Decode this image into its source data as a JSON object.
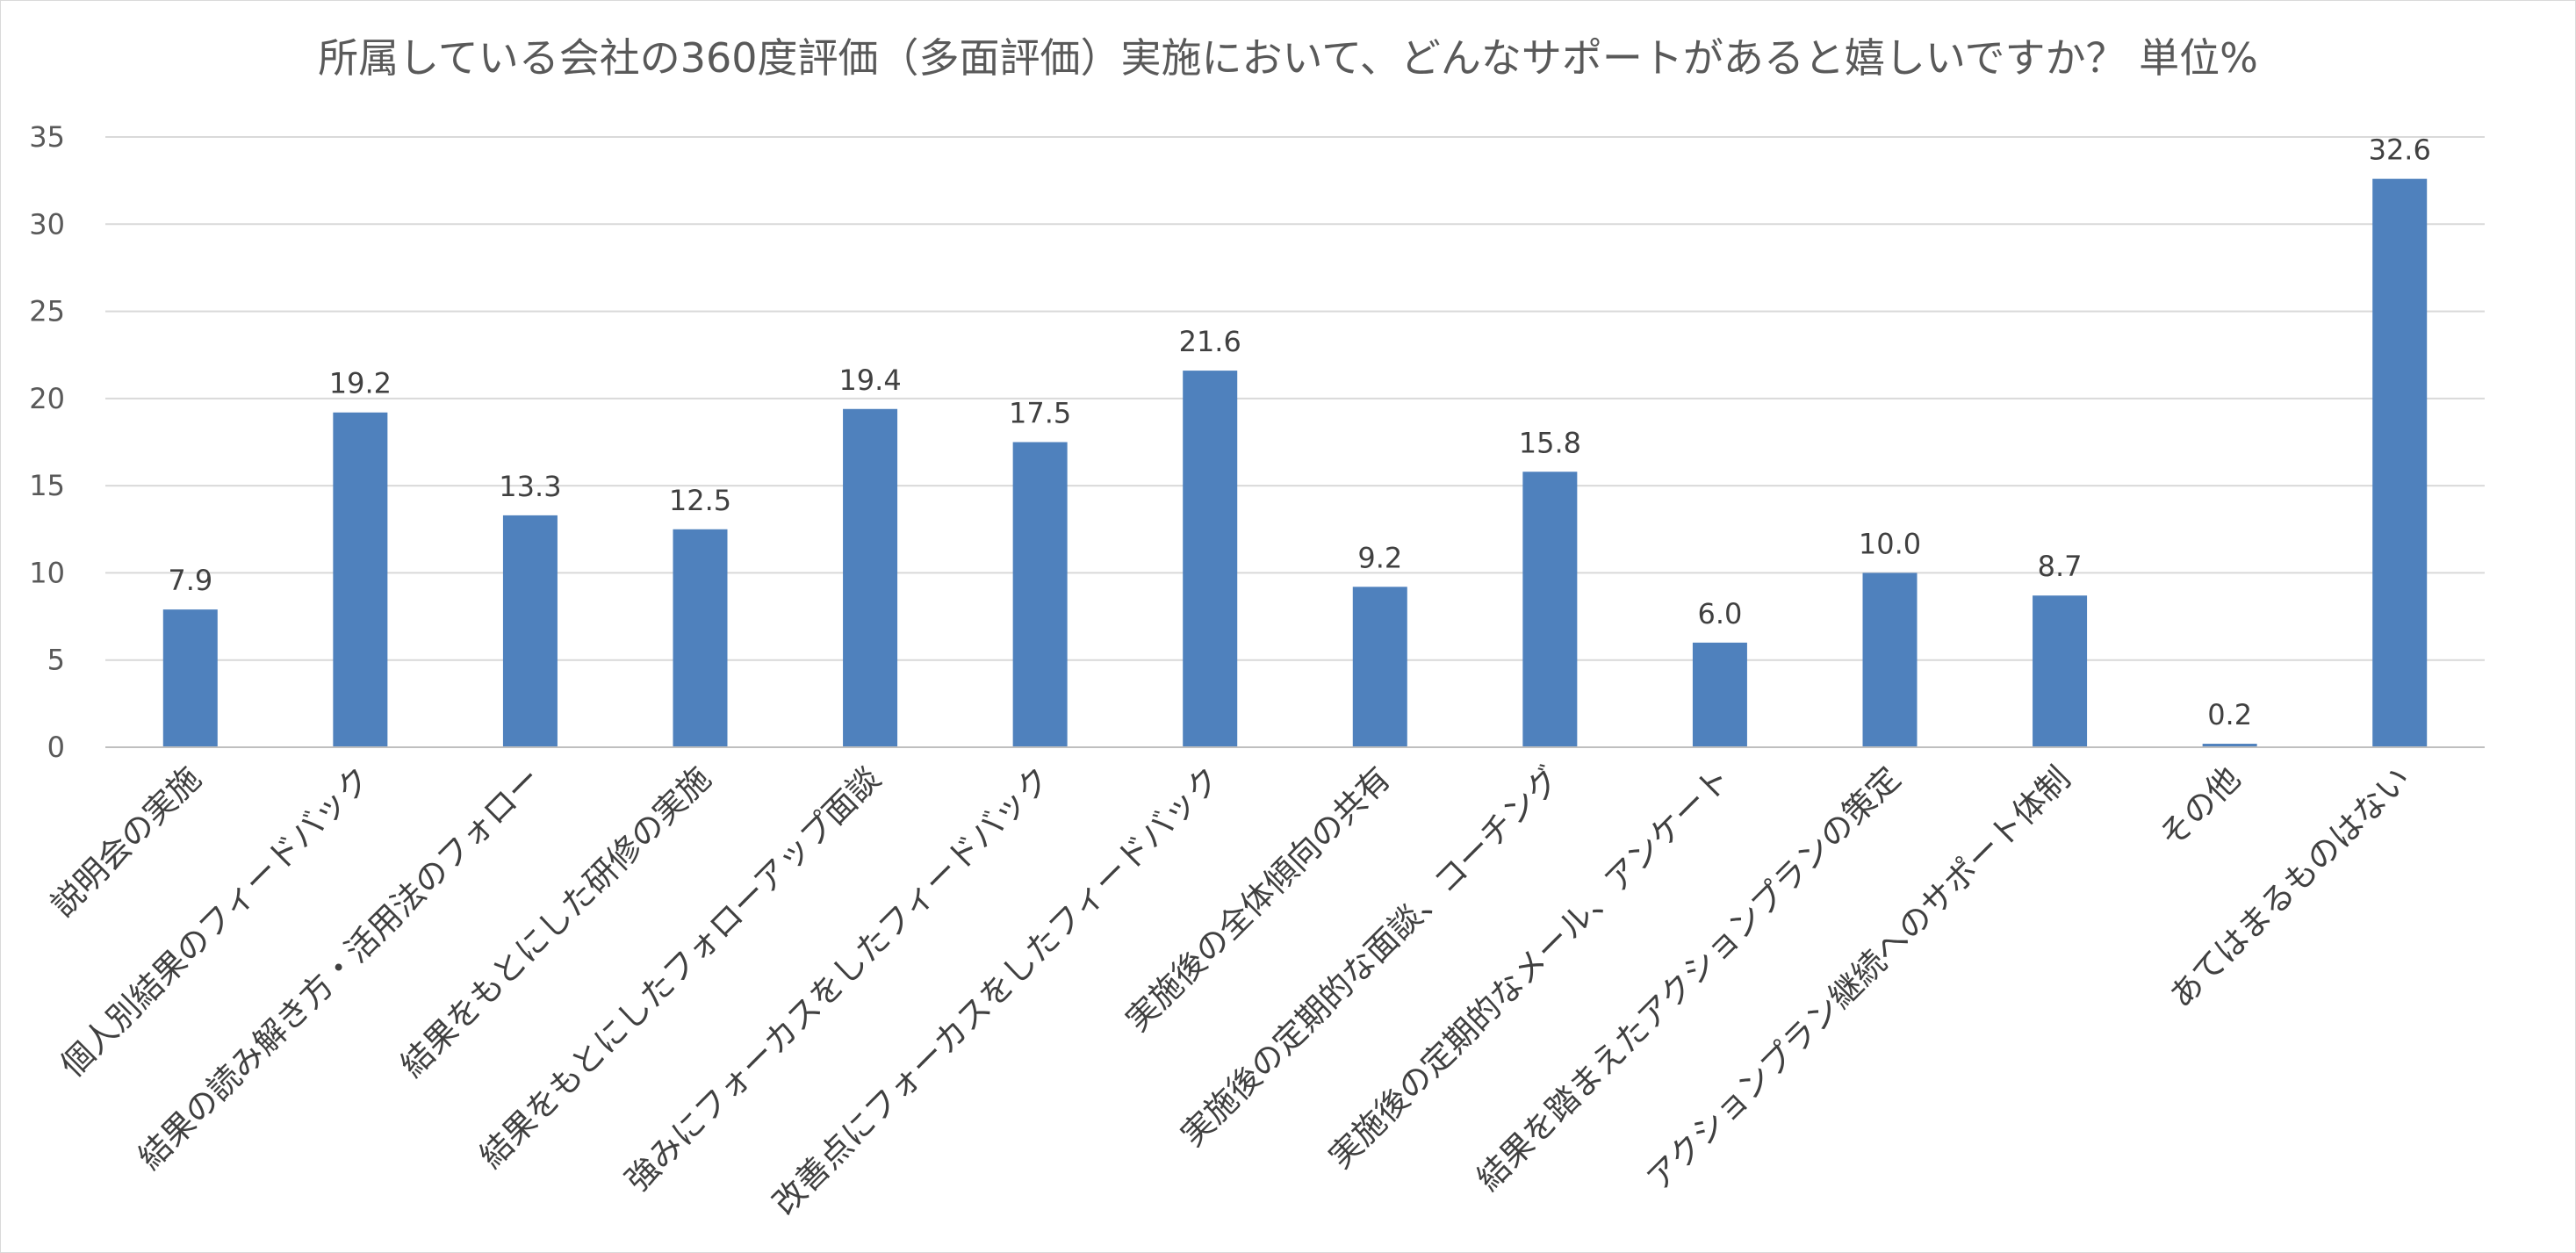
{
  "chart_data": {
    "type": "bar",
    "title": "所属している会社の360度評価（多面評価）実施において、どんなサポートがあると嬉しいですか？ 単位%",
    "xlabel": "",
    "ylabel": "",
    "ylim": [
      0,
      35
    ],
    "yticks": [
      "0",
      "5",
      "10",
      "15",
      "20",
      "25",
      "30",
      "35"
    ],
    "grid": true,
    "bar_color": "#4f81bd",
    "categories": [
      "説明会の実施",
      "個人別結果のフィードバック",
      "結果の読み解き方・活用法のフォロー",
      "結果をもとにした研修の実施",
      "結果をもとにしたフォローアップ面談",
      "強みにフォーカスをしたフィードバック",
      "改善点にフォーカスをしたフィードバック",
      "実施後の全体傾向の共有",
      "実施後の定期的な面談、コーチング",
      "実施後の定期的なメール、アンケート",
      "結果を踏まえたアクションプランの策定",
      "アクションプラン継続へのサポート体制",
      "その他",
      "あてはまるものはない"
    ],
    "values": [
      7.9,
      19.2,
      13.3,
      12.5,
      19.4,
      17.5,
      21.6,
      9.2,
      15.8,
      6.0,
      10.0,
      8.7,
      0.2,
      32.6
    ],
    "value_labels": [
      "7.9",
      "19.2",
      "13.3",
      "12.5",
      "19.4",
      "17.5",
      "21.6",
      "9.2",
      "15.8",
      "6.0",
      "10.0",
      "8.7",
      "0.2",
      "32.6"
    ]
  }
}
